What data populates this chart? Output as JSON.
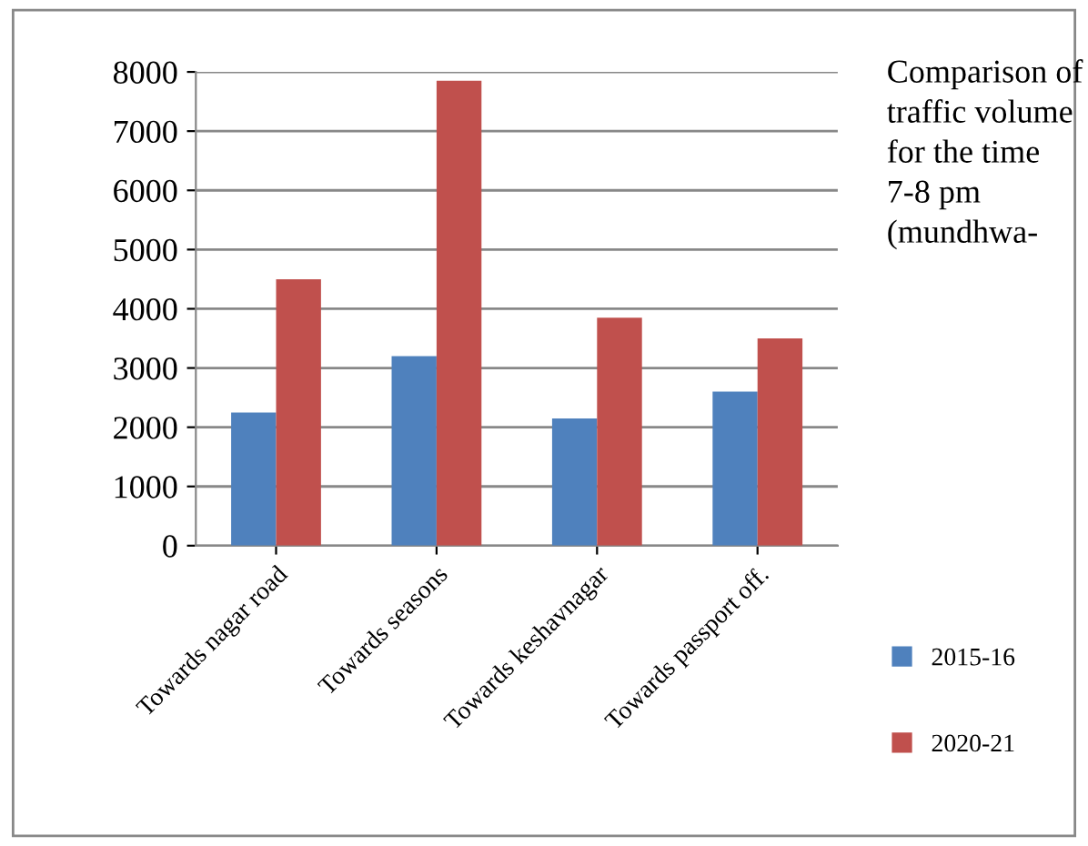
{
  "chart_data": {
    "type": "bar",
    "title": "Comparison of traffic volume for the time 7-8 pm (mundhwa-",
    "categories": [
      "Towards nagar road",
      "Towards seasons",
      "Towards keshavnagar",
      "Towards passport off."
    ],
    "series": [
      {
        "name": "2015-16",
        "color": "#4f81bd",
        "values": [
          2250,
          3200,
          2150,
          2600
        ]
      },
      {
        "name": "2020-21",
        "color": "#c0504d",
        "values": [
          4500,
          7850,
          3850,
          3500
        ]
      }
    ],
    "ylim": [
      0,
      8000
    ],
    "yticks": [
      0,
      1000,
      2000,
      3000,
      4000,
      5000,
      6000,
      7000,
      8000
    ],
    "grid": "y",
    "legend": "right"
  }
}
